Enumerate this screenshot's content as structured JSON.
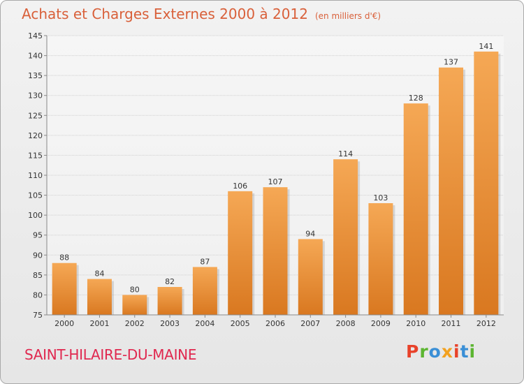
{
  "header": {
    "title": "Achats et Charges Externes 2000 à 2012",
    "subtitle": "(en milliers d'€)"
  },
  "footer": {
    "commune": "SAINT-HILAIRE-DU-MAINE",
    "logo_text": "Proxiti"
  },
  "colors": {
    "title": "#d9603a",
    "commune": "#e0284f",
    "bar_light": "#f5a855",
    "bar_dark": "#d97820",
    "logo": [
      "#e8422a",
      "#5cb531",
      "#3a8fd6",
      "#f2a11f",
      "#e8422a",
      "#3a8fd6",
      "#5cb531"
    ]
  },
  "chart_data": {
    "type": "bar",
    "categories": [
      "2000",
      "2001",
      "2002",
      "2003",
      "2004",
      "2005",
      "2006",
      "2007",
      "2008",
      "2009",
      "2010",
      "2011",
      "2012"
    ],
    "values": [
      88,
      84,
      80,
      82,
      87,
      106,
      107,
      94,
      114,
      103,
      128,
      137,
      141
    ],
    "ylim": [
      75,
      145
    ],
    "yticks": [
      75,
      80,
      85,
      90,
      95,
      100,
      105,
      110,
      115,
      120,
      125,
      130,
      135,
      140,
      145
    ],
    "grid": true
  }
}
